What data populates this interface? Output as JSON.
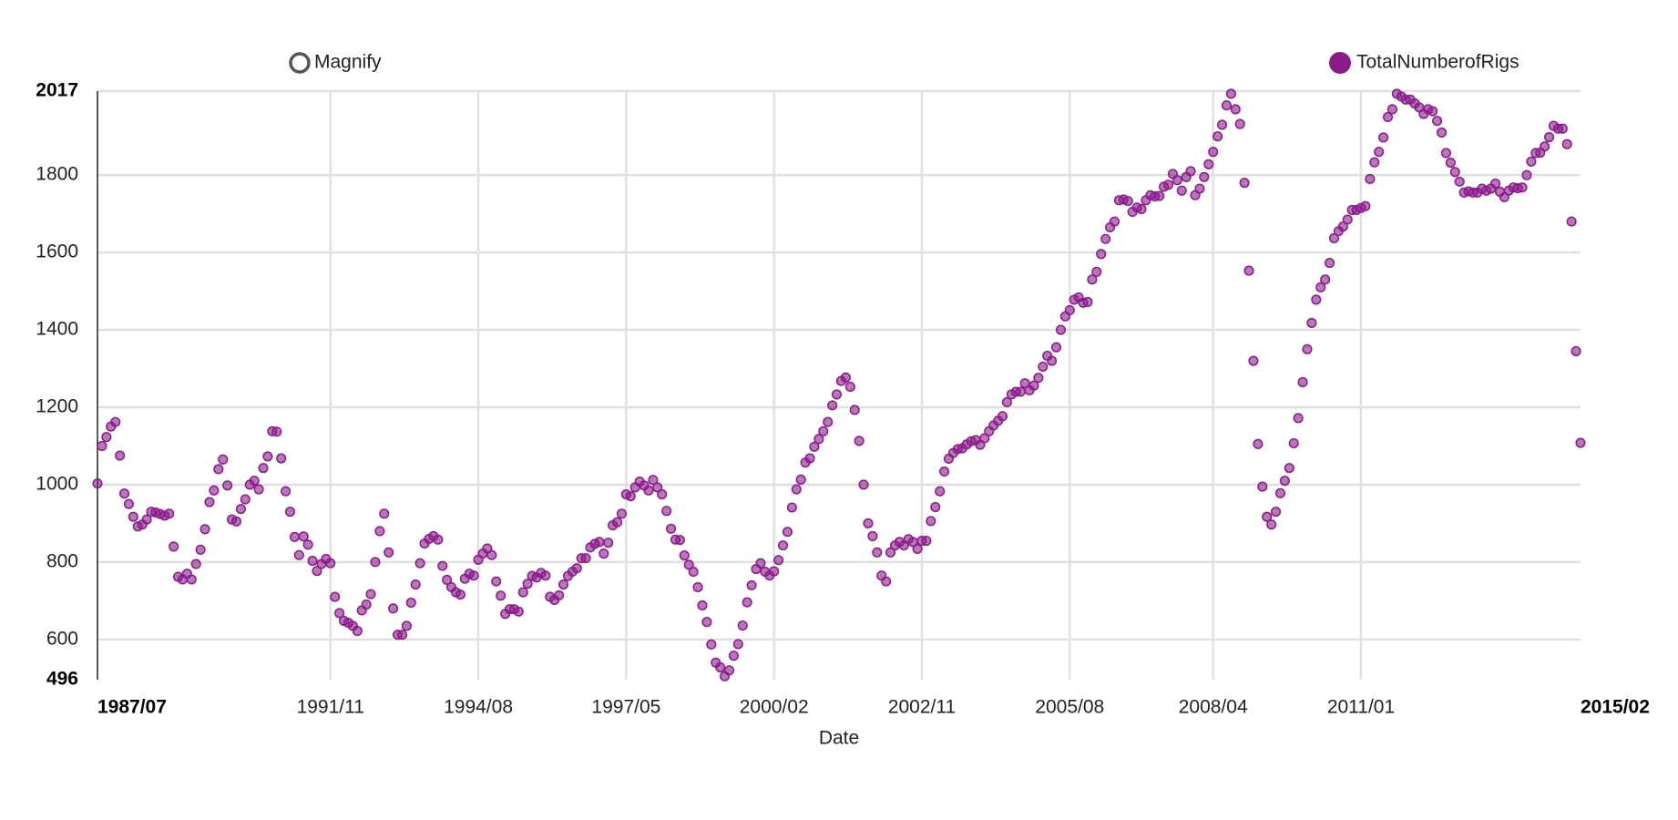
{
  "chart_data": {
    "type": "scatter",
    "toggle_label": "Magnify",
    "x_label": "Date",
    "series": [
      {
        "name": "TotalNumberofRigs",
        "color": "#8b1a8b",
        "values": [
          1003,
          1100,
          1123,
          1150,
          1162,
          1075,
          977,
          950,
          917,
          892,
          897,
          910,
          930,
          928,
          924,
          920,
          925,
          840,
          762,
          755,
          770,
          755,
          795,
          832,
          885,
          955,
          985,
          1040,
          1065,
          998,
          910,
          905,
          937,
          962,
          1000,
          1010,
          988,
          1043,
          1073,
          1138,
          1137,
          1068,
          983,
          930,
          865,
          818,
          866,
          845,
          803,
          777,
          795,
          808,
          797,
          710,
          668,
          648,
          643,
          635,
          622,
          675,
          690,
          717,
          800,
          880,
          925,
          825,
          680,
          612,
          612,
          635,
          695,
          742,
          797,
          848,
          860,
          867,
          858,
          790,
          754,
          735,
          722,
          716,
          757,
          770,
          765,
          806,
          822,
          835,
          818,
          750,
          713,
          666,
          678,
          678,
          672,
          722,
          744,
          764,
          760,
          772,
          765,
          710,
          702,
          714,
          742,
          764,
          775,
          784,
          810,
          810,
          838,
          847,
          852,
          822,
          850,
          895,
          903,
          925,
          975,
          970,
          993,
          1008,
          998,
          985,
          1012,
          993,
          975,
          932,
          886,
          858,
          857,
          817,
          793,
          775,
          735,
          688,
          645,
          587,
          540,
          528,
          505,
          520,
          558,
          588,
          636,
          696,
          740,
          782,
          797,
          775,
          765,
          776,
          805,
          843,
          878,
          941,
          988,
          1013,
          1057,
          1068,
          1098,
          1118,
          1138,
          1162,
          1205,
          1233,
          1268,
          1277,
          1253,
          1193,
          1113,
          1000,
          900,
          867,
          825,
          765,
          750,
          825,
          843,
          852,
          843,
          859,
          852,
          834,
          855,
          855,
          906,
          942,
          983,
          1034,
          1067,
          1082,
          1092,
          1094,
          1104,
          1112,
          1115,
          1103,
          1120,
          1138,
          1153,
          1165,
          1177,
          1213,
          1233,
          1240,
          1240,
          1262,
          1244,
          1256,
          1276,
          1305,
          1333,
          1320,
          1355,
          1400,
          1435,
          1451,
          1478,
          1484,
          1470,
          1472,
          1530,
          1550,
          1596,
          1635,
          1665,
          1680,
          1735,
          1737,
          1733,
          1705,
          1716,
          1712,
          1735,
          1748,
          1745,
          1746,
          1770,
          1775,
          1803,
          1787,
          1760,
          1795,
          1810,
          1748,
          1765,
          1795,
          1828,
          1860,
          1900,
          1930,
          1980,
          2010,
          1970,
          1932,
          1780,
          1553,
          1320,
          1105,
          995,
          917,
          897,
          930,
          978,
          1010,
          1043,
          1107,
          1172,
          1265,
          1350,
          1418,
          1478,
          1510,
          1530,
          1573,
          1637,
          1655,
          1667,
          1685,
          1710,
          1710,
          1715,
          1720,
          1790,
          1833,
          1860,
          1897,
          1950,
          1970,
          2010,
          2003,
          1995,
          1995,
          1985,
          1975,
          1958,
          1970,
          1965,
          1940,
          1910,
          1857,
          1832,
          1808,
          1783,
          1755,
          1758,
          1755,
          1755,
          1765,
          1760,
          1765,
          1778,
          1757,
          1743,
          1760,
          1768,
          1766,
          1768,
          1800,
          1835,
          1857,
          1858,
          1874,
          1898,
          1927,
          1920,
          1920,
          1880,
          1680,
          1345,
          1108
        ]
      }
    ],
    "x": [
      "1987/07",
      "1987/08",
      "1987/09",
      "1987/10",
      "1987/11",
      "1987/12",
      "1988/01",
      "1988/02",
      "1988/03",
      "1988/04",
      "1988/05",
      "1988/06",
      "1988/07",
      "1988/08",
      "1988/09",
      "1988/10",
      "1988/11",
      "1988/12",
      "1989/01",
      "1989/02",
      "1989/03",
      "1989/04",
      "1989/05",
      "1989/06",
      "1989/07",
      "1989/08",
      "1989/09",
      "1989/10",
      "1989/11",
      "1989/12",
      "1990/01",
      "1990/02",
      "1990/03",
      "1990/04",
      "1990/05",
      "1990/06",
      "1990/07",
      "1990/08",
      "1990/09",
      "1990/10",
      "1990/11",
      "1990/12",
      "1991/01",
      "1991/02",
      "1991/03",
      "1991/04",
      "1991/05",
      "1991/06",
      "1991/07",
      "1991/08",
      "1991/09",
      "1991/10",
      "1991/11",
      "1991/12",
      "1992/01",
      "1992/02",
      "1992/03",
      "1992/04",
      "1992/05",
      "1992/06",
      "1992/07",
      "1992/08",
      "1992/09",
      "1992/10",
      "1992/11",
      "1992/12",
      "1993/01",
      "1993/02",
      "1993/03",
      "1993/04",
      "1993/05",
      "1993/06",
      "1993/07",
      "1993/08",
      "1993/09",
      "1993/10",
      "1993/11",
      "1993/12",
      "1994/01",
      "1994/02",
      "1994/03",
      "1994/04",
      "1994/05",
      "1994/06",
      "1994/07",
      "1994/08",
      "1994/09",
      "1994/10",
      "1994/11",
      "1994/12",
      "1995/01",
      "1995/02",
      "1995/03",
      "1995/04",
      "1995/05",
      "1995/06",
      "1995/07",
      "1995/08",
      "1995/09",
      "1995/10",
      "1995/11",
      "1995/12",
      "1996/01",
      "1996/02",
      "1996/03",
      "1996/04",
      "1996/05",
      "1996/06",
      "1996/07",
      "1996/08",
      "1996/09",
      "1996/10",
      "1996/11",
      "1996/12",
      "1997/01",
      "1997/02",
      "1997/03",
      "1997/04",
      "1997/05",
      "1997/06",
      "1997/07",
      "1997/08",
      "1997/09",
      "1997/10",
      "1997/11",
      "1997/12",
      "1998/01",
      "1998/02",
      "1998/03",
      "1998/04",
      "1998/05",
      "1998/06",
      "1998/07",
      "1998/08",
      "1998/09",
      "1998/10",
      "1998/11",
      "1998/12",
      "1999/01",
      "1999/02",
      "1999/03",
      "1999/04",
      "1999/05",
      "1999/06",
      "1999/07",
      "1999/08",
      "1999/09",
      "1999/10",
      "1999/11",
      "1999/12",
      "2000/01",
      "2000/02",
      "2000/03",
      "2000/04",
      "2000/05",
      "2000/06",
      "2000/07",
      "2000/08",
      "2000/09",
      "2000/10",
      "2000/11",
      "2000/12",
      "2001/01",
      "2001/02",
      "2001/03",
      "2001/04",
      "2001/05",
      "2001/06",
      "2001/07",
      "2001/08",
      "2001/09",
      "2001/10",
      "2001/11",
      "2001/12",
      "2002/01",
      "2002/02",
      "2002/03",
      "2002/04",
      "2002/05",
      "2002/06",
      "2002/07",
      "2002/08",
      "2002/09",
      "2002/10",
      "2002/11",
      "2002/12",
      "2003/01",
      "2003/02",
      "2003/03",
      "2003/04",
      "2003/05",
      "2003/06",
      "2003/07",
      "2003/08",
      "2003/09",
      "2003/10",
      "2003/11",
      "2003/12",
      "2004/01",
      "2004/02",
      "2004/03",
      "2004/04",
      "2004/05",
      "2004/06",
      "2004/07",
      "2004/08",
      "2004/09",
      "2004/10",
      "2004/11",
      "2004/12",
      "2005/01",
      "2005/02",
      "2005/03",
      "2005/04",
      "2005/05",
      "2005/06",
      "2005/07",
      "2005/08",
      "2005/09",
      "2005/10",
      "2005/11",
      "2005/12",
      "2006/01",
      "2006/02",
      "2006/03",
      "2006/04",
      "2006/05",
      "2006/06",
      "2006/07",
      "2006/08",
      "2006/09",
      "2006/10",
      "2006/11",
      "2006/12",
      "2007/01",
      "2007/02",
      "2007/03",
      "2007/04",
      "2007/05",
      "2007/06",
      "2007/07",
      "2007/08",
      "2007/09",
      "2007/10",
      "2007/11",
      "2007/12",
      "2008/01",
      "2008/02",
      "2008/03",
      "2008/04",
      "2008/05",
      "2008/06",
      "2008/07",
      "2008/08",
      "2008/09",
      "2008/10",
      "2008/11",
      "2008/12",
      "2009/01",
      "2009/02",
      "2009/03",
      "2009/04",
      "2009/05",
      "2009/06",
      "2009/07",
      "2009/08",
      "2009/09",
      "2009/10",
      "2009/11",
      "2009/12",
      "2010/01",
      "2010/02",
      "2010/03",
      "2010/04",
      "2010/05",
      "2010/06",
      "2010/07",
      "2010/08",
      "2010/09",
      "2010/10",
      "2010/11",
      "2010/12",
      "2011/01",
      "2011/02",
      "2011/03",
      "2011/04",
      "2011/05",
      "2011/06",
      "2011/07",
      "2011/08",
      "2011/09",
      "2011/10",
      "2011/11",
      "2011/12",
      "2012/01",
      "2012/02",
      "2012/03",
      "2012/04",
      "2012/05",
      "2012/06",
      "2012/07",
      "2012/08",
      "2012/09",
      "2012/10",
      "2012/11",
      "2012/12",
      "2013/01",
      "2013/02",
      "2013/03",
      "2013/04",
      "2013/05",
      "2013/06",
      "2013/07",
      "2013/08",
      "2013/09",
      "2013/10",
      "2013/11",
      "2013/12",
      "2014/01",
      "2014/02",
      "2014/03",
      "2014/04",
      "2014/05",
      "2014/06",
      "2014/07",
      "2014/08",
      "2014/09",
      "2014/10",
      "2014/11",
      "2014/12",
      "2015/01",
      "2015/02"
    ],
    "xlim": [
      "1987/07",
      "2015/02"
    ],
    "xticks": [
      "1987/07",
      "1991/11",
      "1994/08",
      "1997/05",
      "2000/02",
      "2002/11",
      "2005/08",
      "2008/04",
      "2011/01",
      "2015/02"
    ],
    "ylim": [
      496,
      2017
    ],
    "yticks": [
      496,
      600,
      800,
      1000,
      1200,
      1400,
      1600,
      1800,
      2017
    ],
    "grid": true
  }
}
